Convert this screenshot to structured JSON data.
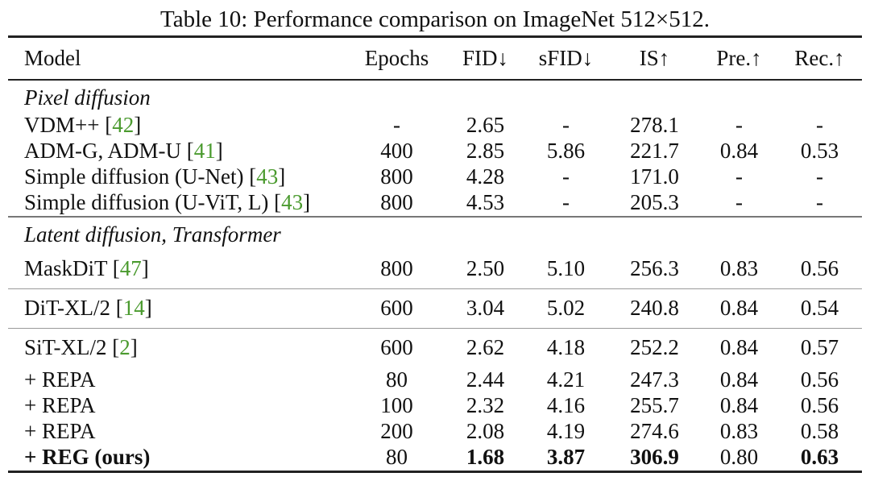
{
  "caption": "Table 10: Performance comparison on ImageNet 512×512.",
  "headers": {
    "model": "Model",
    "epochs": "Epochs",
    "fid": "FID↓",
    "sfid": "sFID↓",
    "is": "IS↑",
    "pre": "Pre.↑",
    "rec": "Rec.↑"
  },
  "groups": {
    "pixel": "Pixel diffusion",
    "latent": "Latent diffusion, Transformer"
  },
  "rows": [
    {
      "name": "VDM++ [",
      "cite": "42",
      "close": "]",
      "epochs": "-",
      "fid": "2.65",
      "sfid": "-",
      "is": "278.1",
      "pre": "-",
      "rec": "-"
    },
    {
      "name": "ADM-G, ADM-U [",
      "cite": "41",
      "close": "]",
      "epochs": "400",
      "fid": "2.85",
      "sfid": "5.86",
      "is": "221.7",
      "pre": "0.84",
      "rec": "0.53"
    },
    {
      "name": "Simple diffusion (U-Net) [",
      "cite": "43",
      "close": "]",
      "epochs": "800",
      "fid": "4.28",
      "sfid": "-",
      "is": "171.0",
      "pre": "-",
      "rec": "-"
    },
    {
      "name": "Simple diffusion (U-ViT, L) [",
      "cite": "43",
      "close": "]",
      "epochs": "800",
      "fid": "4.53",
      "sfid": "-",
      "is": "205.3",
      "pre": "-",
      "rec": "-"
    },
    {
      "name": "MaskDiT [",
      "cite": "47",
      "close": "]",
      "epochs": "800",
      "fid": "2.50",
      "sfid": "5.10",
      "is": "256.3",
      "pre": "0.83",
      "rec": "0.56"
    },
    {
      "name": "DiT-XL/2 [",
      "cite": "14",
      "close": "]",
      "epochs": "600",
      "fid": "3.04",
      "sfid": "5.02",
      "is": "240.8",
      "pre": "0.84",
      "rec": "0.54"
    },
    {
      "name": "SiT-XL/2 [",
      "cite": "2",
      "close": "]",
      "epochs": "600",
      "fid": "2.62",
      "sfid": "4.18",
      "is": "252.2",
      "pre": "0.84",
      "rec": "0.57"
    },
    {
      "name": "+ REPA",
      "epochs": "80",
      "fid": "2.44",
      "sfid": "4.21",
      "is": "247.3",
      "pre": "0.84",
      "rec": "0.56"
    },
    {
      "name": "+ REPA",
      "epochs": "100",
      "fid": "2.32",
      "sfid": "4.16",
      "is": "255.7",
      "pre": "0.84",
      "rec": "0.56"
    },
    {
      "name": "+ REPA",
      "epochs": "200",
      "fid": "2.08",
      "sfid": "4.19",
      "is": "274.6",
      "pre": "0.83",
      "rec": "0.58"
    },
    {
      "name": "+ REG (ours)",
      "epochs": "80",
      "fid": "1.68",
      "sfid": "3.87",
      "is": "306.9",
      "pre": "0.80",
      "rec": "0.63"
    }
  ]
}
